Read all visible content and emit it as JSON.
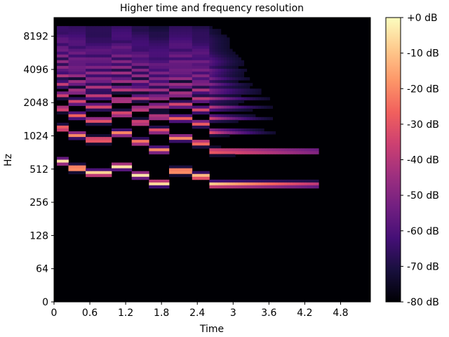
{
  "chart_data": {
    "type": "heatmap",
    "title": "Higher time and frequency resolution",
    "xlabel": "Time",
    "ylabel": "Hz",
    "x_ticks": [
      "0",
      "0.6",
      "1.2",
      "1.8",
      "2.4",
      "3",
      "3.6",
      "4.2",
      "4.8"
    ],
    "x_tick_values": [
      0,
      0.6,
      1.2,
      1.8,
      2.4,
      3.0,
      3.6,
      4.2,
      4.8
    ],
    "xlim": [
      0,
      5.3
    ],
    "y_scale": "log2",
    "y_ticks": [
      "0",
      "64",
      "128",
      "256",
      "512",
      "1024",
      "2048",
      "4096",
      "8192"
    ],
    "y_tick_values": [
      0,
      64,
      128,
      256,
      512,
      1024,
      2048,
      4096,
      8192
    ],
    "ylim": [
      0,
      11025
    ],
    "colormap": "magma",
    "colormap_stops": [
      "#000004",
      "#180f3d",
      "#440f76",
      "#721f81",
      "#9e2f7f",
      "#cd4071",
      "#f1605d",
      "#fd9668",
      "#feca8d",
      "#fcfdbf"
    ],
    "colorbar": {
      "ticks": [
        "+0 dB",
        "-10 dB",
        "-20 dB",
        "-30 dB",
        "-40 dB",
        "-50 dB",
        "-60 dB",
        "-70 dB",
        "-80 dB"
      ],
      "tick_values": [
        0,
        -10,
        -20,
        -30,
        -40,
        -50,
        -60,
        -70,
        -80
      ],
      "range": [
        -80,
        0
      ]
    },
    "signal": {
      "active_time_range": [
        0.05,
        4.45
      ],
      "notes": [
        {
          "t": [
            0.05,
            0.25
          ],
          "f0": 600
        },
        {
          "t": [
            0.25,
            0.55
          ],
          "f0": 520
        },
        {
          "t": [
            0.55,
            0.95
          ],
          "f0": 470
        },
        {
          "t": [
            0.95,
            1.3
          ],
          "f0": 540
        },
        {
          "t": [
            1.3,
            1.6
          ],
          "f0": 450
        },
        {
          "t": [
            1.6,
            1.95
          ],
          "f0": 380
        },
        {
          "t": [
            1.95,
            2.3
          ],
          "f0": 490
        },
        {
          "t": [
            2.3,
            2.6
          ],
          "f0": 440
        },
        {
          "t": [
            2.6,
            4.45
          ],
          "f0": 370
        }
      ]
    }
  }
}
